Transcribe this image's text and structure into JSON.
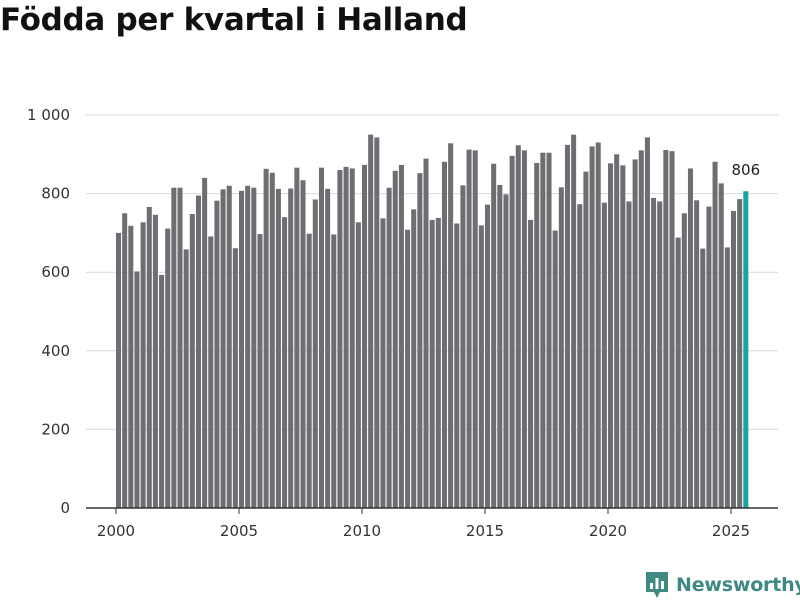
{
  "title": "Födda per kvartal i Halland",
  "brand": {
    "name": "Newsworthy",
    "icon": "newsworthy-logo-icon",
    "color": "#3e8a83"
  },
  "colors": {
    "bar": "#6e6d72",
    "highlight": "#1aa39a",
    "grid": "#d9d9d9",
    "axis": "#333333"
  },
  "chart_data": {
    "type": "bar",
    "title": "Födda per kvartal i Halland",
    "xlabel": "",
    "ylabel": "",
    "ylim": [
      0,
      1000
    ],
    "yticks": [
      0,
      200,
      400,
      600,
      800,
      1000
    ],
    "ytick_labels": [
      "0",
      "200",
      "400",
      "600",
      "800",
      "1 000"
    ],
    "xticks": [
      2000,
      2005,
      2010,
      2015,
      2020,
      2025
    ],
    "xtick_labels": [
      "2000",
      "2005",
      "2010",
      "2015",
      "2020",
      "2025"
    ],
    "x_start": 2000,
    "periods_per_year": 4,
    "grid": true,
    "values": [
      700,
      750,
      718,
      602,
      727,
      766,
      746,
      593,
      711,
      815,
      815,
      658,
      748,
      795,
      840,
      691,
      782,
      811,
      820,
      661,
      807,
      820,
      815,
      697,
      863,
      853,
      812,
      740,
      813,
      866,
      834,
      698,
      785,
      866,
      812,
      696,
      860,
      868,
      864,
      727,
      873,
      950,
      943,
      737,
      815,
      858,
      873,
      708,
      760,
      852,
      889,
      733,
      738,
      881,
      928,
      724,
      821,
      912,
      910,
      719,
      772,
      876,
      822,
      798,
      896,
      923,
      910,
      733,
      878,
      904,
      904,
      706,
      816,
      924,
      950,
      773,
      856,
      920,
      930,
      777,
      877,
      900,
      872,
      780,
      887,
      910,
      943,
      789,
      780,
      911,
      908,
      688,
      750,
      864,
      783,
      660,
      767,
      881,
      826,
      663,
      756,
      786,
      806
    ],
    "highlight": {
      "period": "2025 Q3",
      "value": 806,
      "label": "806"
    }
  }
}
